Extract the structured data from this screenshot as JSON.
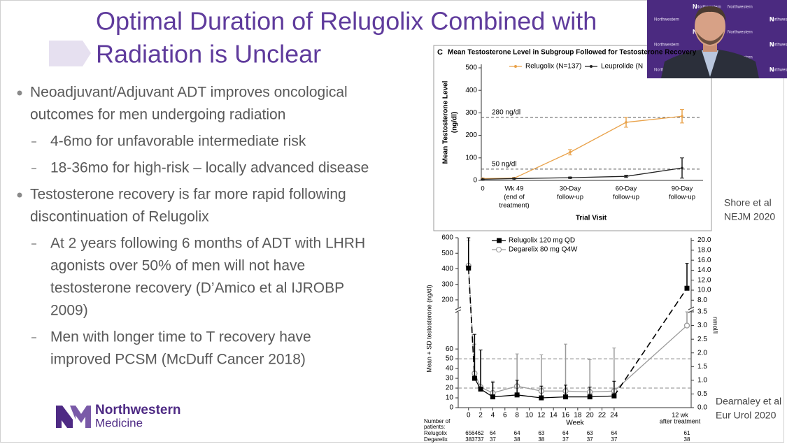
{
  "slide": {
    "title": [
      "Optimal Duration of Relugolix Combined with",
      "Radiation is Unclear"
    ],
    "bullets": [
      {
        "lines": [
          "Neoadjuvant/Adjuvant ADT improves oncological",
          "outcomes for men undergoing radiation"
        ],
        "sub": [
          {
            "lines": [
              "4-6mo for unfavorable intermediate risk"
            ]
          },
          {
            "lines": [
              "18-36mo for high-risk – locally advanced disease"
            ]
          }
        ]
      },
      {
        "lines": [
          "Testosterone recovery is far more rapid following",
          "discontinuation of Relugolix"
        ],
        "sub": [
          {
            "lines": [
              "At 2 years following 6 months of ADT with LHRH",
              "agonists over 50% of men will not have",
              "testosterone recovery (D’Amico et al IJROBP",
              "2009)"
            ]
          },
          {
            "lines": [
              "Men with longer time to T recovery have",
              "improved PCSM (McDuff Cancer 2018)"
            ]
          }
        ]
      }
    ],
    "citations": [
      [
        "Shore et al",
        "NEJM 2020"
      ],
      [
        "Dearnaley et al",
        "Eur Urol 2020"
      ]
    ],
    "logo": {
      "name": "Northwestern",
      "sub": "Medicine"
    }
  },
  "video": {
    "backdrop_text": "Northwestern",
    "logo_letter": "N"
  },
  "chart_data": [
    {
      "type": "line",
      "panel": "C",
      "title": "Mean Testosterone Level in Subgroup Followed for Testosterone Recovery",
      "y_label": [
        "Mean Testosterone Level",
        "(ng/dl)"
      ],
      "x_label": "Trial Visit",
      "categories": [
        [
          "0"
        ],
        [
          "Wk 49",
          "(end of",
          "treatment)"
        ],
        [
          "30-Day",
          "follow-up"
        ],
        [
          "60-Day",
          "follow-up"
        ],
        [
          "90-Day",
          "follow-up"
        ]
      ],
      "series": [
        {
          "name": "Relugolix (N=137)",
          "color": "#e9a24a",
          "values": [
            8,
            10,
            125,
            258,
            285
          ],
          "errors": [
            2,
            3,
            12,
            22,
            30
          ]
        },
        {
          "name": "Leuprolide (N",
          "color": "#222222",
          "values": [
            5,
            8,
            12,
            18,
            55
          ],
          "errors": [
            1,
            2,
            3,
            5,
            45
          ]
        }
      ],
      "ylim": [
        0,
        500
      ],
      "yticks": [
        0,
        100,
        200,
        300,
        400,
        500
      ],
      "reference_lines": [
        {
          "value": 280,
          "label": "280 ng/dl"
        },
        {
          "value": 50,
          "label": "50 ng/dl"
        }
      ]
    },
    {
      "type": "broken_axis_line",
      "x_label": "Week",
      "y_label": "Mean + SD testosterone (ng/dl)",
      "y2_label": "nmol/l",
      "x": [
        0,
        1,
        2,
        4,
        8,
        12,
        16,
        20,
        24
      ],
      "xlim": [
        -1.7,
        36.7
      ],
      "xticks": [
        0,
        2,
        4,
        6,
        8,
        10,
        12,
        14,
        16,
        18,
        20,
        22,
        24
      ],
      "after_label": [
        "12 wk",
        "after treatment"
      ],
      "series": [
        {
          "name": "Relugolix 120 mg QD",
          "color": "#000000",
          "marker": "square",
          "values": [
            405,
            30,
            19,
            11,
            13,
            10,
            11,
            11,
            12
          ],
          "errors": [
            195,
            45,
            40,
            15,
            15,
            12,
            12,
            10,
            15
          ],
          "after_value": 275,
          "after_error": 160
        },
        {
          "name": "Degarelix 80 mg Q4W",
          "color": "#999999",
          "marker": "circle",
          "values": [
            420,
            35,
            21,
            15,
            22,
            17,
            17,
            16,
            17
          ],
          "errors": [
            160,
            30,
            38,
            12,
            33,
            37,
            48,
            33,
            44
          ],
          "after_value": 84,
          "after_error": 40
        }
      ],
      "lower": {
        "ylim": [
          0,
          98
        ],
        "yticks": [
          0,
          10,
          20,
          30,
          40,
          50,
          60
        ],
        "y2lim": [
          0,
          3.5
        ],
        "y2ticks": [
          {
            "value": 0,
            "label": "0.0"
          },
          0.5,
          {
            "value": 1,
            "label": "1.0"
          },
          1.5,
          {
            "value": 2,
            "label": "2.0"
          },
          2.5,
          {
            "value": 3,
            "label": "3.0"
          },
          3.5
        ]
      },
      "upper": {
        "ylim": [
          150,
          600
        ],
        "yticks": [
          200,
          300,
          400,
          500,
          600
        ],
        "y2lim": [
          6.5,
          20.5
        ],
        "y2ticks": [
          {
            "value": 8,
            "label": "8.0"
          },
          {
            "value": 10,
            "label": "10.0"
          },
          {
            "value": 12,
            "label": "12.0"
          },
          {
            "value": 14,
            "label": "14.0"
          },
          {
            "value": 16,
            "label": "16.0"
          },
          {
            "value": 18,
            "label": "18.0"
          },
          {
            "value": 20,
            "label": "20.0"
          }
        ]
      },
      "reference_lines": [
        50,
        20
      ],
      "patients": {
        "label": [
          "Number of",
          "patients:"
        ],
        "rows": [
          {
            "name": "Relugolix",
            "counts": [
              65,
              64,
              62,
              64,
              64,
              63,
              64,
              63,
              64,
              61
            ]
          },
          {
            "name": "Degarelix",
            "counts": [
              38,
              37,
              37,
              37,
              38,
              38,
              37,
              37,
              37,
              38
            ]
          }
        ]
      }
    }
  ]
}
